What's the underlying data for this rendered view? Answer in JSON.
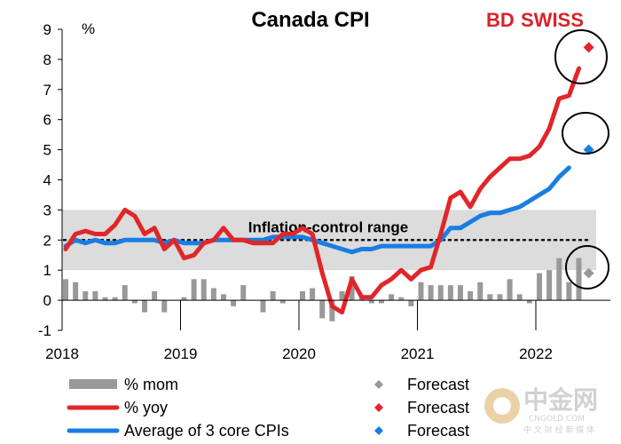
{
  "chart_data": {
    "type": "line",
    "title": "Canada CPI",
    "unit_label": "%",
    "ylim": [
      -1,
      9
    ],
    "y_ticks": [
      "-1",
      "0",
      "1",
      "2",
      "3",
      "4",
      "5",
      "6",
      "7",
      "8",
      "9"
    ],
    "x_ticks": [
      "2018",
      "2019",
      "2020",
      "2021",
      "2022"
    ],
    "band": {
      "label": "Inflation-control range",
      "from": 1,
      "to": 3,
      "target": 2
    },
    "start": "2018-01",
    "series": [
      {
        "name": "% mom",
        "kind": "bar",
        "color": "#999999",
        "values": [
          0.7,
          0.6,
          0.3,
          0.3,
          0.1,
          0.1,
          0.5,
          -0.1,
          -0.4,
          0.3,
          -0.4,
          0.0,
          0.1,
          0.7,
          0.7,
          0.4,
          0.2,
          -0.2,
          0.5,
          0.0,
          -0.4,
          0.3,
          -0.1,
          0.0,
          0.3,
          0.4,
          -0.6,
          -0.7,
          0.3,
          0.8,
          0.1,
          -0.1,
          -0.1,
          0.2,
          0.1,
          -0.2,
          0.6,
          0.5,
          0.5,
          0.5,
          0.5,
          0.3,
          0.6,
          0.2,
          0.2,
          0.7,
          0.2,
          -0.1,
          0.9,
          1.0,
          1.4,
          0.6,
          1.4
        ]
      },
      {
        "name": "% yoy",
        "kind": "line",
        "color": "#e1262a",
        "values": [
          1.7,
          2.2,
          2.3,
          2.2,
          2.2,
          2.5,
          3.0,
          2.8,
          2.2,
          2.4,
          1.7,
          2.0,
          1.4,
          1.5,
          1.9,
          2.0,
          2.4,
          2.0,
          2.0,
          1.9,
          1.9,
          1.9,
          2.2,
          2.2,
          2.4,
          2.2,
          0.9,
          -0.2,
          -0.4,
          0.7,
          0.1,
          0.1,
          0.5,
          0.7,
          1.0,
          0.7,
          1.0,
          1.1,
          2.2,
          3.4,
          3.6,
          3.1,
          3.7,
          4.1,
          4.4,
          4.7,
          4.7,
          4.8,
          5.1,
          5.7,
          6.7,
          6.8,
          7.7
        ]
      },
      {
        "name": "Average of 3 core CPIs",
        "kind": "line",
        "color": "#1a7de3",
        "values": [
          1.8,
          2.0,
          1.9,
          2.0,
          1.9,
          1.9,
          2.0,
          2.0,
          2.0,
          2.0,
          1.9,
          2.0,
          1.9,
          1.9,
          1.9,
          2.0,
          2.0,
          2.0,
          2.0,
          2.0,
          2.0,
          2.1,
          2.1,
          2.1,
          2.1,
          2.0,
          1.9,
          1.8,
          1.7,
          1.6,
          1.7,
          1.7,
          1.8,
          1.8,
          1.8,
          1.8,
          1.8,
          1.8,
          2.0,
          2.4,
          2.4,
          2.6,
          2.8,
          2.9,
          2.9,
          3.0,
          3.1,
          3.3,
          3.5,
          3.7,
          4.1,
          4.4
        ]
      }
    ],
    "forecasts": [
      {
        "name": "Forecast",
        "for": "% mom",
        "color": "#999999",
        "date": "2022-06",
        "value": 0.9
      },
      {
        "name": "Forecast",
        "for": "% yoy",
        "color": "#e1262a",
        "date": "2022-06",
        "value": 8.4
      },
      {
        "name": "Forecast",
        "for": "Average of 3 core CPIs",
        "color": "#1a7de3",
        "date": "2022-06",
        "value": 5.0
      }
    ],
    "legend": [
      {
        "label": "% mom",
        "color": "#999999",
        "style": "bar"
      },
      {
        "label": "% yoy",
        "color": "#e1262a",
        "style": "line"
      },
      {
        "label": "Average of 3 core CPIs",
        "color": "#1a7de3",
        "style": "line"
      },
      {
        "label": "Forecast",
        "color": "#999999",
        "style": "diamond"
      },
      {
        "label": "Forecast",
        "color": "#e1262a",
        "style": "diamond"
      },
      {
        "label": "Forecast",
        "color": "#1a7de3",
        "style": "diamond"
      }
    ],
    "legend_placement": "bottom",
    "grid": false
  },
  "brand": {
    "bd": "BD",
    "swiss": "SWISS"
  },
  "watermark": {
    "main": "中金网",
    "sub": "CNGOLD.COM",
    "tag": "中 文 财 经 新 媒 体"
  }
}
